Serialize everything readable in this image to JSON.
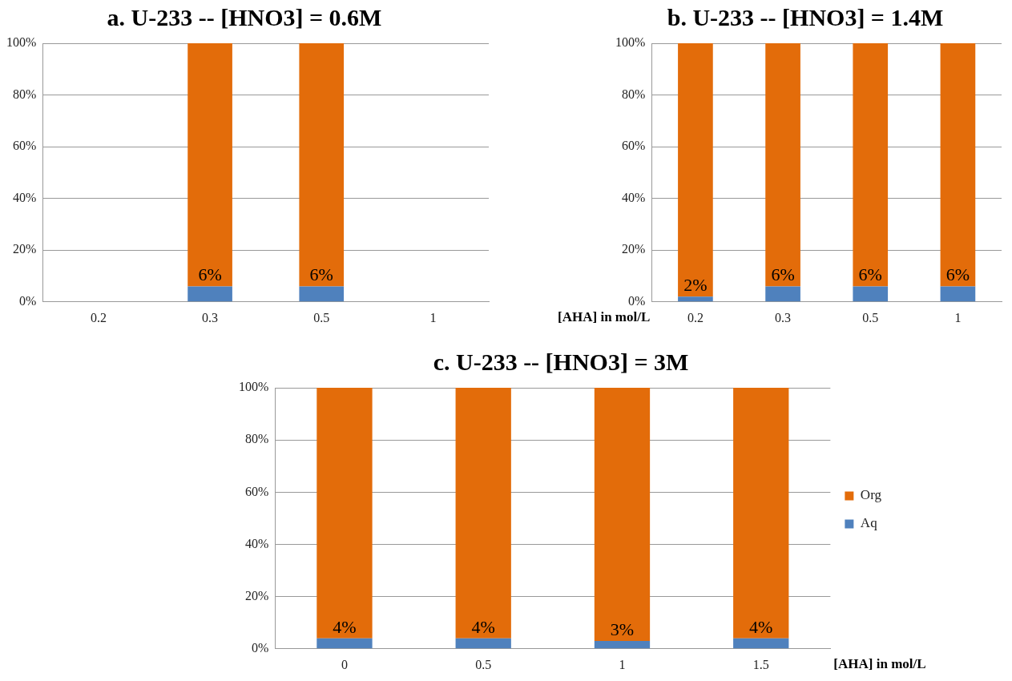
{
  "chart_data": [
    {
      "type": "bar",
      "title": "a. U-233 -- [HNO3] = 0.6M",
      "categories": [
        "0.2",
        "0.3",
        "0.5",
        "1"
      ],
      "stacked": true,
      "ylim": [
        0,
        100
      ],
      "yticks": [
        {
          "value": 0,
          "label": "0%"
        },
        {
          "value": 20,
          "label": "20%"
        },
        {
          "value": 40,
          "label": "40%"
        },
        {
          "value": 60,
          "label": "60%"
        },
        {
          "value": 80,
          "label": "80%"
        },
        {
          "value": 100,
          "label": "100%"
        }
      ],
      "grid": "y",
      "series": [
        {
          "color": "#4f81bd",
          "values": [
            null,
            6,
            6,
            null
          ],
          "value_labels": [
            null,
            "6%",
            "6%",
            null
          ]
        },
        {
          "color": "#e36c0a",
          "values": [
            null,
            94,
            94,
            null
          ]
        }
      ]
    },
    {
      "type": "bar",
      "title": "b. U-233 -- [HNO3] = 1.4M",
      "xlabel": "[AHA] in mol/L",
      "categories": [
        "0.2",
        "0.3",
        "0.5",
        "1"
      ],
      "stacked": true,
      "ylim": [
        0,
        100
      ],
      "yticks": [
        {
          "value": 0,
          "label": "0%"
        },
        {
          "value": 20,
          "label": "20%"
        },
        {
          "value": 40,
          "label": "40%"
        },
        {
          "value": 60,
          "label": "60%"
        },
        {
          "value": 80,
          "label": "80%"
        },
        {
          "value": 100,
          "label": "100%"
        }
      ],
      "grid": "y",
      "series": [
        {
          "color": "#4f81bd",
          "values": [
            2,
            6,
            6,
            6
          ],
          "value_labels": [
            "2%",
            "6%",
            "6%",
            "6%"
          ]
        },
        {
          "color": "#e36c0a",
          "values": [
            98,
            94,
            94,
            94
          ]
        }
      ]
    },
    {
      "type": "bar",
      "title": "c. U-233 -- [HNO3] = 3M",
      "xlabel": "[AHA] in mol/L",
      "categories": [
        "0",
        "0.5",
        "1",
        "1.5"
      ],
      "stacked": true,
      "ylim": [
        0,
        100
      ],
      "yticks": [
        {
          "value": 0,
          "label": "0%"
        },
        {
          "value": 20,
          "label": "20%"
        },
        {
          "value": 40,
          "label": "40%"
        },
        {
          "value": 60,
          "label": "60%"
        },
        {
          "value": 80,
          "label": "80%"
        },
        {
          "value": 100,
          "label": "100%"
        }
      ],
      "grid": "y",
      "legend": "right",
      "series": [
        {
          "name": "Aq",
          "color": "#4f81bd",
          "values": [
            4,
            4,
            3,
            4
          ],
          "value_labels": [
            "4%",
            "4%",
            "3%",
            "4%"
          ]
        },
        {
          "name": "Org",
          "color": "#e36c0a",
          "values": [
            96,
            96,
            97,
            96
          ]
        }
      ]
    }
  ]
}
